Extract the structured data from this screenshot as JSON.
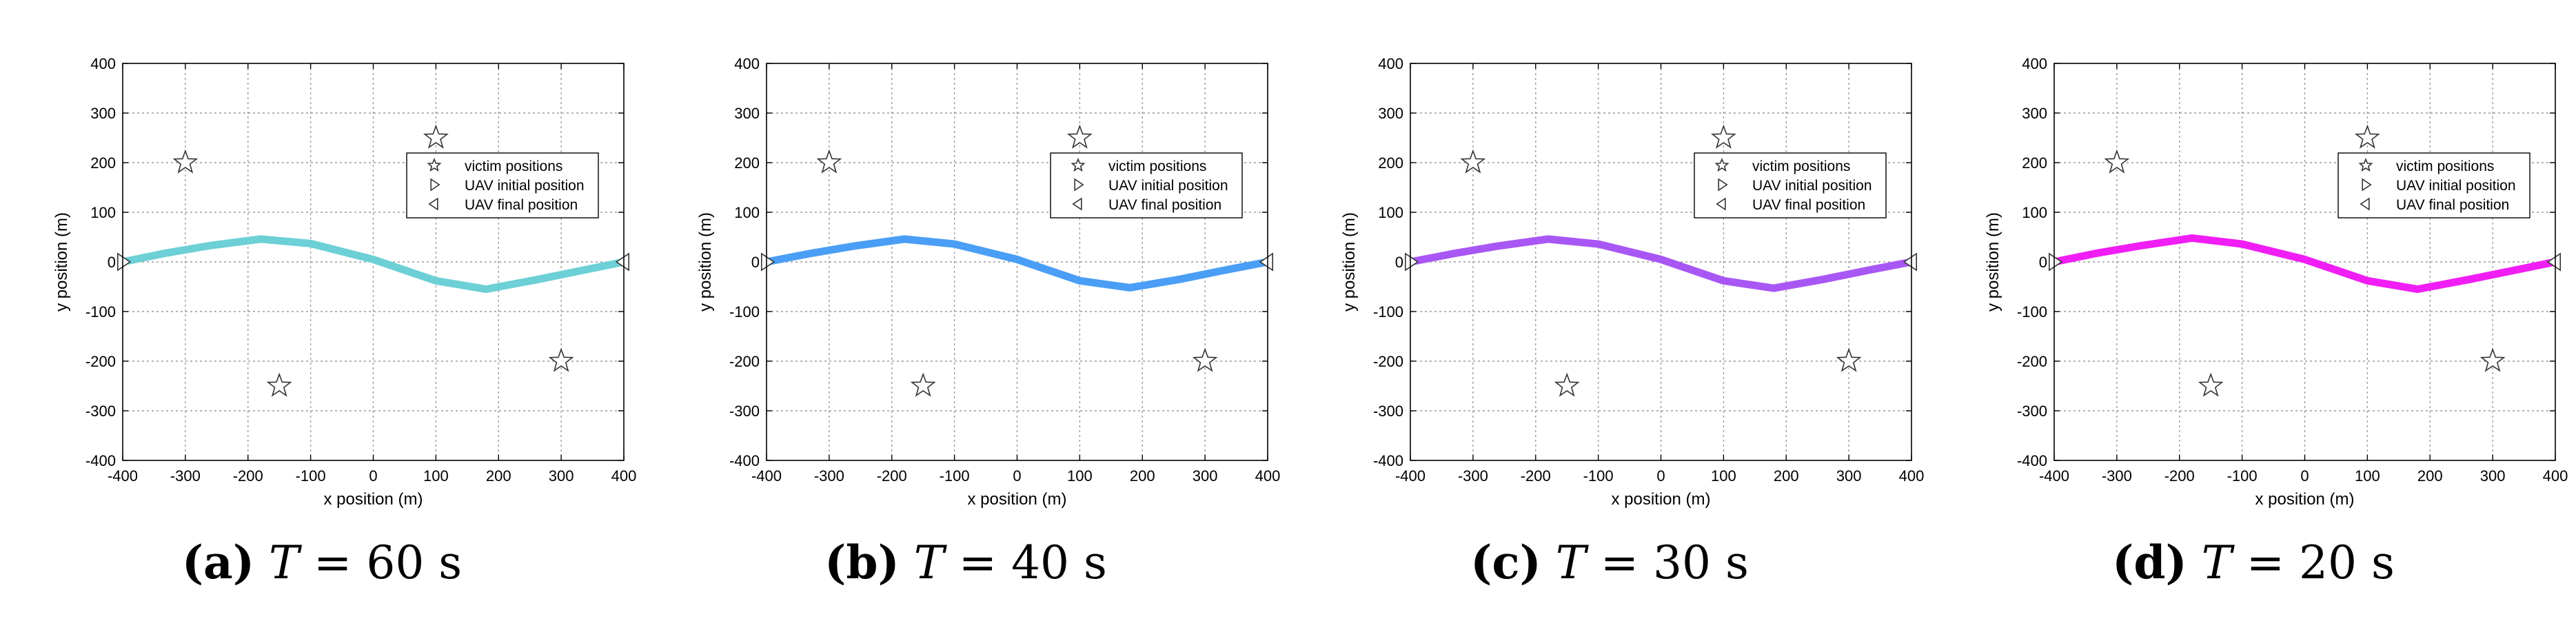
{
  "chart_data": [
    {
      "type": "line",
      "panel_label": "(a)",
      "caption_math": "T",
      "caption_eq": " = 60 s",
      "line_color": "#6cd0d6",
      "xlabel": "x position (m)",
      "ylabel": "y position (m)",
      "xlim": [
        -400,
        400
      ],
      "ylim": [
        -400,
        400
      ],
      "xticks": [
        -400,
        -300,
        -200,
        -100,
        0,
        100,
        200,
        300,
        400
      ],
      "yticks": [
        -400,
        -300,
        -200,
        -100,
        0,
        100,
        200,
        300,
        400
      ],
      "grid": true,
      "legend_position": "upper-right",
      "legend": [
        "victim positions",
        "UAV initial position",
        "UAV final position"
      ],
      "victims": {
        "x": [
          -300,
          100,
          -150,
          300
        ],
        "y": [
          200,
          250,
          -250,
          -200
        ]
      },
      "uav_initial": {
        "x": -400,
        "y": 0
      },
      "uav_final": {
        "x": 400,
        "y": 0
      },
      "trajectory": {
        "x": [
          -400,
          -330,
          -260,
          -180,
          -100,
          0,
          100,
          180,
          260,
          330,
          400
        ],
        "y": [
          0,
          18,
          33,
          46,
          37,
          5,
          -38,
          -55,
          -36,
          -18,
          0
        ]
      }
    },
    {
      "type": "line",
      "panel_label": "(b)",
      "caption_math": "T",
      "caption_eq": " = 40 s",
      "line_color": "#4a9ef5",
      "xlabel": "x position (m)",
      "ylabel": "y position (m)",
      "xlim": [
        -400,
        400
      ],
      "ylim": [
        -400,
        400
      ],
      "xticks": [
        -400,
        -300,
        -200,
        -100,
        0,
        100,
        200,
        300,
        400
      ],
      "yticks": [
        -400,
        -300,
        -200,
        -100,
        0,
        100,
        200,
        300,
        400
      ],
      "grid": true,
      "legend_position": "upper-right",
      "legend": [
        "victim positions",
        "UAV initial position",
        "UAV final position"
      ],
      "victims": {
        "x": [
          -300,
          100,
          -150,
          300
        ],
        "y": [
          200,
          250,
          -250,
          -200
        ]
      },
      "uav_initial": {
        "x": -400,
        "y": 0
      },
      "uav_final": {
        "x": 400,
        "y": 0
      },
      "trajectory": {
        "x": [
          -400,
          -330,
          -260,
          -180,
          -100,
          0,
          100,
          180,
          260,
          330,
          400
        ],
        "y": [
          0,
          17,
          32,
          46,
          36,
          5,
          -38,
          -52,
          -35,
          -17,
          0
        ]
      }
    },
    {
      "type": "line",
      "panel_label": "(c)",
      "caption_math": "T",
      "caption_eq": " = 30 s",
      "line_color": "#a857f5",
      "xlabel": "x position (m)",
      "ylabel": "y position (m)",
      "xlim": [
        -400,
        400
      ],
      "ylim": [
        -400,
        400
      ],
      "xticks": [
        -400,
        -300,
        -200,
        -100,
        0,
        100,
        200,
        300,
        400
      ],
      "yticks": [
        -400,
        -300,
        -200,
        -100,
        0,
        100,
        200,
        300,
        400
      ],
      "grid": true,
      "legend_position": "upper-right",
      "legend": [
        "victim positions",
        "UAV initial position",
        "UAV final position"
      ],
      "victims": {
        "x": [
          -300,
          100,
          -150,
          300
        ],
        "y": [
          200,
          250,
          -250,
          -200
        ]
      },
      "uav_initial": {
        "x": -400,
        "y": 0
      },
      "uav_final": {
        "x": 400,
        "y": 0
      },
      "trajectory": {
        "x": [
          -400,
          -330,
          -260,
          -180,
          -100,
          0,
          100,
          180,
          260,
          330,
          400
        ],
        "y": [
          0,
          17,
          32,
          46,
          36,
          5,
          -38,
          -53,
          -35,
          -17,
          0
        ]
      }
    },
    {
      "type": "line",
      "panel_label": "(d)",
      "caption_math": "T",
      "caption_eq": " = 20 s",
      "line_color": "#f01ef5",
      "xlabel": "x position (m)",
      "ylabel": "y position (m)",
      "xlim": [
        -400,
        400
      ],
      "ylim": [
        -400,
        400
      ],
      "xticks": [
        -400,
        -300,
        -200,
        -100,
        0,
        100,
        200,
        300,
        400
      ],
      "yticks": [
        -400,
        -300,
        -200,
        -100,
        0,
        100,
        200,
        300,
        400
      ],
      "grid": true,
      "legend_position": "upper-right",
      "legend": [
        "victim positions",
        "UAV initial position",
        "UAV final position"
      ],
      "victims": {
        "x": [
          -300,
          100,
          -150,
          300
        ],
        "y": [
          200,
          250,
          -250,
          -200
        ]
      },
      "uav_initial": {
        "x": -400,
        "y": 0
      },
      "uav_final": {
        "x": 400,
        "y": 0
      },
      "trajectory": {
        "x": [
          -400,
          -330,
          -260,
          -180,
          -100,
          0,
          100,
          180,
          260,
          330,
          400
        ],
        "y": [
          0,
          18,
          33,
          48,
          36,
          5,
          -38,
          -55,
          -36,
          -18,
          0
        ]
      }
    }
  ]
}
